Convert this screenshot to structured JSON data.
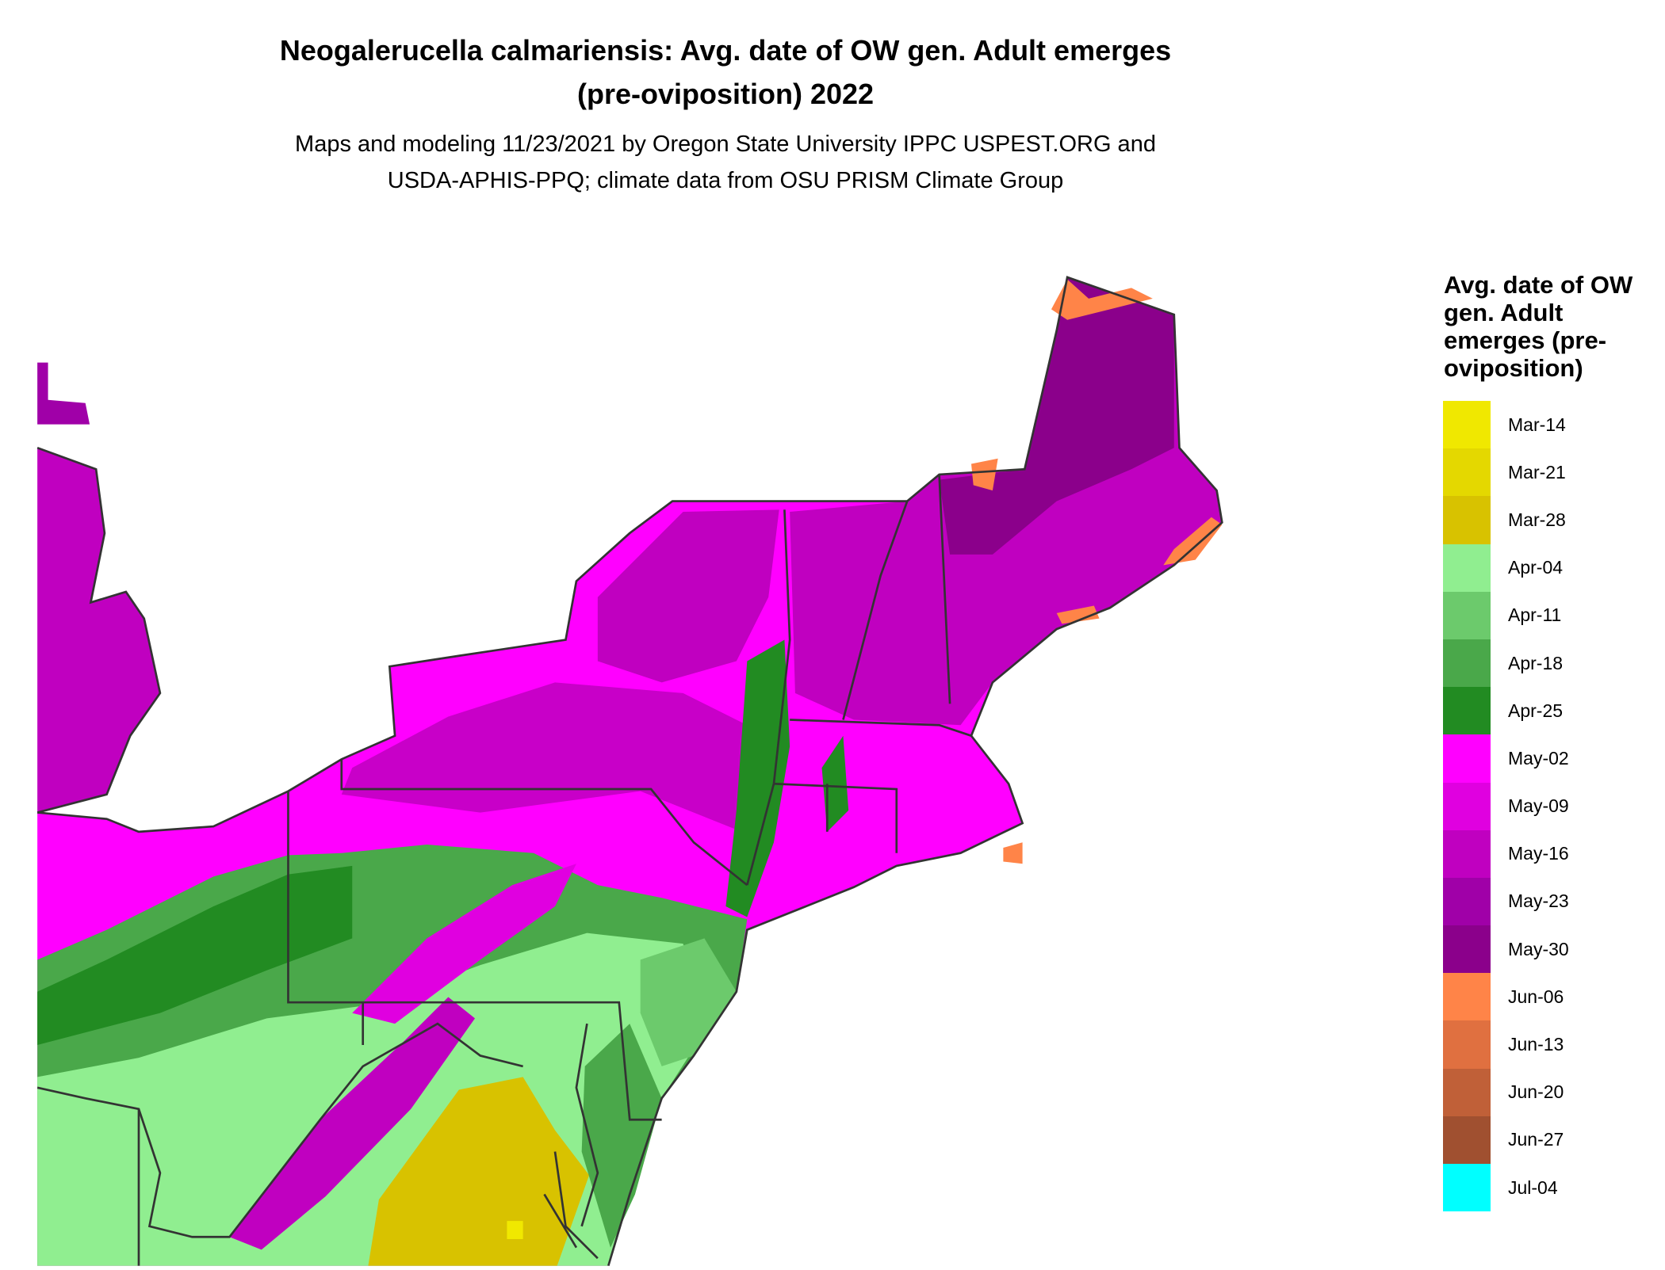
{
  "title": {
    "line1": "Neogalerucella calmariensis: Avg. date of OW gen. Adult emerges",
    "line2": "(pre-oviposition) 2022"
  },
  "subtitle": {
    "line1": "Maps and modeling 11/23/2021 by Oregon State University IPPC USPEST.ORG and",
    "line2": "USDA-APHIS-PPQ; climate data from OSU PRISM Climate Group"
  },
  "legend": {
    "title": "Avg. date of OW gen. Adult emerges (pre-oviposition)",
    "items": [
      {
        "label": "Mar-14",
        "color": "#f0e800"
      },
      {
        "label": "Mar-21",
        "color": "#e4d800"
      },
      {
        "label": "Mar-28",
        "color": "#d8c200"
      },
      {
        "label": "Apr-04",
        "color": "#90ee90"
      },
      {
        "label": "Apr-11",
        "color": "#6cca6c"
      },
      {
        "label": "Apr-18",
        "color": "#4aa84a"
      },
      {
        "label": "Apr-25",
        "color": "#228b22"
      },
      {
        "label": "May-02",
        "color": "#ff00ff"
      },
      {
        "label": "May-09",
        "color": "#e000e0"
      },
      {
        "label": "May-16",
        "color": "#c000c0"
      },
      {
        "label": "May-23",
        "color": "#a000a8"
      },
      {
        "label": "May-30",
        "color": "#8b008b"
      },
      {
        "label": "Jun-06",
        "color": "#ff8448"
      },
      {
        "label": "Jun-13",
        "color": "#e07040"
      },
      {
        "label": "Jun-20",
        "color": "#c06038"
      },
      {
        "label": "Jun-27",
        "color": "#a05030"
      },
      {
        "label": "Jul-04",
        "color": "#00ffff"
      }
    ]
  },
  "map": {
    "border_color": "#333333"
  }
}
